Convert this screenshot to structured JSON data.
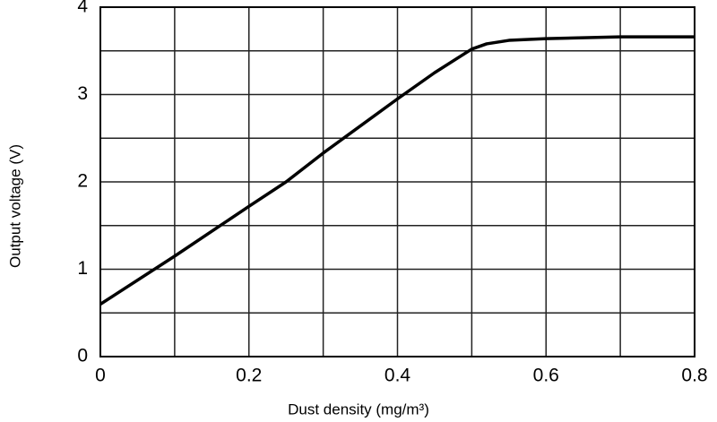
{
  "chart_data": {
    "type": "line",
    "xlabel": "Dust density (mg/m³)",
    "ylabel": "Output voltage (V)",
    "x": [
      0,
      0.1,
      0.2,
      0.25,
      0.3,
      0.4,
      0.45,
      0.5,
      0.52,
      0.55,
      0.6,
      0.7,
      0.8
    ],
    "values": [
      0.6,
      1.15,
      1.72,
      2.0,
      2.33,
      2.95,
      3.25,
      3.52,
      3.58,
      3.62,
      3.64,
      3.66,
      3.66
    ],
    "color": "#000000",
    "xlim": [
      0,
      0.8
    ],
    "ylim": [
      0,
      4
    ],
    "xticks": [
      0,
      0.2,
      0.4,
      0.6,
      0.8
    ],
    "yticks": [
      0,
      1,
      2,
      3,
      4
    ],
    "xminor_ticks": [
      0.1,
      0.3,
      0.5,
      0.7
    ],
    "yminor_ticks": [
      0.5,
      1.5,
      2.5,
      3.5
    ],
    "grid": true
  }
}
